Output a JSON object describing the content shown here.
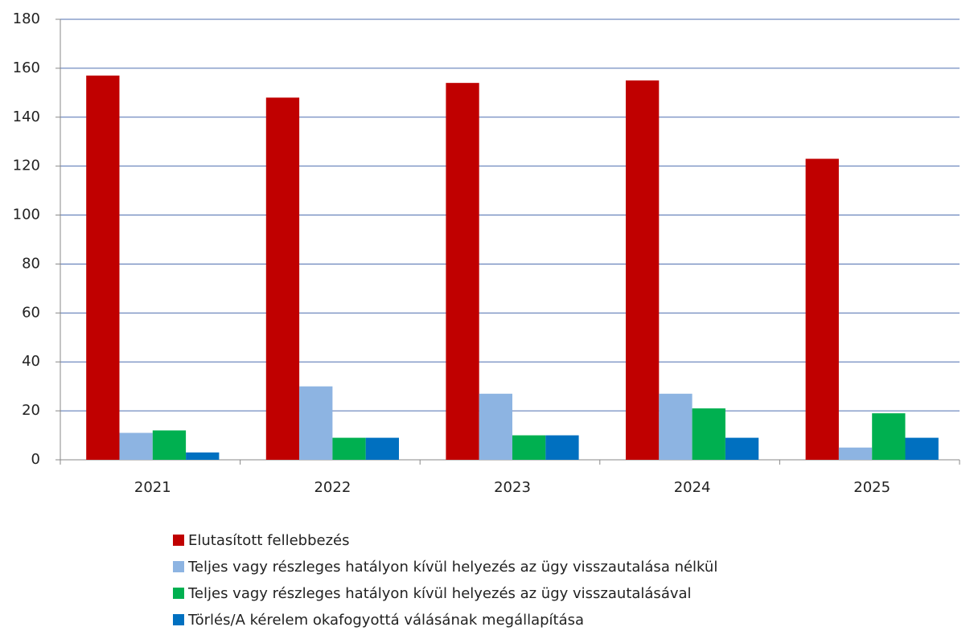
{
  "chart_data": {
    "type": "bar",
    "categories": [
      "2021",
      "2022",
      "2023",
      "2024",
      "2025"
    ],
    "series": [
      {
        "name": "Elutasított fellebbezés",
        "color": "#c00000",
        "values": [
          157,
          148,
          154,
          155,
          123
        ]
      },
      {
        "name": "Teljes vagy részleges hatályon kívül helyezés az ügy visszautalása nélkül",
        "color": "#8db4e2",
        "values": [
          11,
          30,
          27,
          27,
          5
        ]
      },
      {
        "name": "Teljes vagy részleges hatályon kívül helyezés az ügy visszautalásával",
        "color": "#00b050",
        "values": [
          12,
          9,
          10,
          21,
          19
        ]
      },
      {
        "name": "Törlés/A kérelem okafogyottá válásának megállapítása",
        "color": "#0070c0",
        "values": [
          3,
          9,
          10,
          9,
          9
        ]
      }
    ],
    "ylim": [
      0,
      180
    ],
    "yticks": [
      0,
      20,
      40,
      60,
      80,
      100,
      120,
      140,
      160,
      180
    ],
    "grid": true,
    "legend": "bottom"
  }
}
